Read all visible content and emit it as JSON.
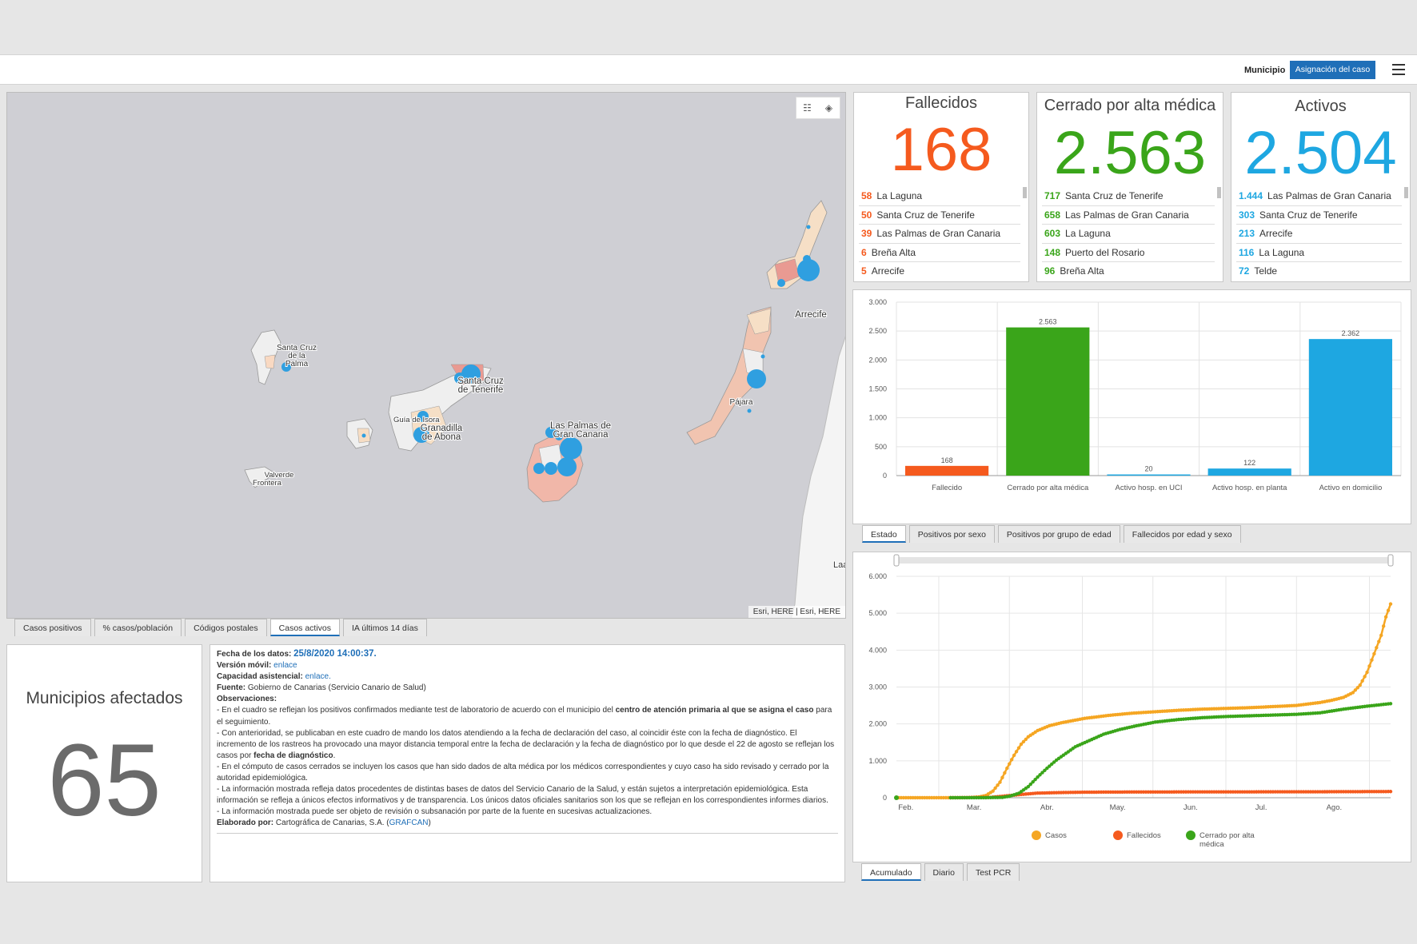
{
  "header": {
    "label": "Municipio",
    "button": "Asignación del caso"
  },
  "map": {
    "tools": {
      "list": "☷",
      "layers": "◈"
    },
    "attribution": "Esri, HERE | Esri, HERE",
    "labels": {
      "sc_palma": [
        "Santa Cruz",
        "de la",
        "Palma"
      ],
      "sc_tenerife": [
        "Santa Cruz",
        "de Tenerife"
      ],
      "guia": "Guía de Isora",
      "granadilla": [
        "Granadilla",
        "de Abona"
      ],
      "lpgc": [
        "Las Palmas de",
        "Gran Canaria"
      ],
      "arrecife": "Arrecife",
      "pajara": "Pájara",
      "valverde": [
        "Valverde",
        "Frontera"
      ],
      "laay": "Laay"
    },
    "tabs": [
      "Casos positivos",
      "% casos/población",
      "Códigos postales",
      "Casos activos",
      "IA últimos 14 días"
    ],
    "active_tab": 3
  },
  "colors": {
    "fallecidos": "#f55a1e",
    "cerrado": "#3aa51a",
    "activos": "#1ea7e1",
    "casos": "#f5a623",
    "blue": "#1f6fb8"
  },
  "kpis": [
    {
      "title": "Fallecidos",
      "value": "168",
      "color": "#f55a1e",
      "rows": [
        {
          "n": "58",
          "name": "La Laguna"
        },
        {
          "n": "50",
          "name": "Santa Cruz de Tenerife"
        },
        {
          "n": "39",
          "name": "Las Palmas de Gran Canaria"
        },
        {
          "n": "6",
          "name": "Breña Alta"
        },
        {
          "n": "5",
          "name": "Arrecife"
        }
      ]
    },
    {
      "title": "Cerrado por alta médica",
      "value": "2.563",
      "color": "#3aa51a",
      "rows": [
        {
          "n": "717",
          "name": "Santa Cruz de Tenerife"
        },
        {
          "n": "658",
          "name": "Las Palmas de Gran Canaria"
        },
        {
          "n": "603",
          "name": "La Laguna"
        },
        {
          "n": "148",
          "name": "Puerto del Rosario"
        },
        {
          "n": "96",
          "name": "Breña Alta"
        }
      ]
    },
    {
      "title": "Activos",
      "value": "2.504",
      "color": "#1ea7e1",
      "rows": [
        {
          "n": "1.444",
          "name": "Las Palmas de Gran Canaria"
        },
        {
          "n": "303",
          "name": "Santa Cruz de Tenerife"
        },
        {
          "n": "213",
          "name": "Arrecife"
        },
        {
          "n": "116",
          "name": "La Laguna"
        },
        {
          "n": "72",
          "name": "Telde"
        }
      ]
    }
  ],
  "municipios": {
    "title": "Municipios afectados",
    "value": "65"
  },
  "info": {
    "fecha_label": "Fecha de los datos:",
    "fecha": "25/8/2020 14:00:37.",
    "movil_label": "Versión móvil:",
    "movil_link": "enlace",
    "capacidad_label": "Capacidad asistencial:",
    "capacidad_link": "enlace.",
    "fuente_label": "Fuente:",
    "fuente": "Gobierno de Canarias (Servicio Canario de Salud)",
    "obs_label": "Observaciones:",
    "obs1a": "- En el cuadro se reflejan los positivos confirmados mediante test de laboratorio de acuerdo con el municipio del ",
    "obs1b": "centro de atención primaria al que se asigna el caso",
    "obs1c": " para el seguimiento.",
    "obs2a": "- Con anterioridad, se publicaban en este cuadro de mando los datos atendiendo a la fecha de declaración del caso, al coincidir éste con la fecha de diagnóstico. El incremento de los rastreos ha provocado una mayor distancia temporal entre la fecha de declaración y la fecha de diagnóstico por lo que desde el 22 de agosto se reflejan los casos por ",
    "obs2b": "fecha de diagnóstico",
    "obs3": "- En el cómputo de casos cerrados se incluyen los casos que han sido dados de alta médica por los médicos correspondientes y cuyo caso ha sido revisado y cerrado por la autoridad epidemiológica.",
    "obs4": "- La información mostrada refleja datos procedentes de distintas bases de datos del Servicio Canario de la Salud, y están sujetos a interpretación epidemiológica. Esta información se refleja a únicos efectos informativos y de transparencia. Los únicos datos oficiales sanitarios son los que se reflejan en los correspondientes informes diarios.",
    "obs5": "- La información mostrada puede ser objeto de revisión o subsanación por parte de la fuente en sucesivas actualizaciones.",
    "elab_label": "Elaborado por:",
    "elab": "Cartográfica de Canarias, S.A. (",
    "elab_link": "GRAFCAN",
    "elab_end": ")"
  },
  "chart_data": [
    {
      "type": "bar",
      "title": "",
      "categories": [
        "Fallecido",
        "Cerrado por alta médica",
        "Activo hosp. en UCI",
        "Activo hosp. en planta",
        "Activo en domicilio"
      ],
      "values": [
        168,
        2563,
        20,
        122,
        2362
      ],
      "labels": [
        "168",
        "2.563",
        "20",
        "122",
        "2.362"
      ],
      "colors": [
        "#f55a1e",
        "#3aa51a",
        "#1ea7e1",
        "#1ea7e1",
        "#1ea7e1"
      ],
      "ylim": [
        0,
        3000
      ],
      "yticks": [
        0,
        500,
        1000,
        1500,
        2000,
        2500,
        3000
      ],
      "yticklabels": [
        "0",
        "500",
        "1.000",
        "1.500",
        "2.000",
        "2.500",
        "3.000"
      ],
      "grid": true,
      "tabs": [
        "Estado",
        "Positivos por sexo",
        "Positivos por grupo de edad",
        "Fallecidos por edad y sexo"
      ],
      "active_tab": 0
    },
    {
      "type": "line",
      "title": "",
      "x_months": [
        "Feb.",
        "Mar.",
        "Abr.",
        "May.",
        "Jun.",
        "Jul.",
        "Ago."
      ],
      "ylim": [
        0,
        6000
      ],
      "yticks": [
        0,
        1000,
        2000,
        3000,
        4000,
        5000,
        6000
      ],
      "yticklabels": [
        "0",
        "1.000",
        "2.000",
        "3.000",
        "4.000",
        "5.000",
        "6.000"
      ],
      "x_day_range": [
        0,
        210
      ],
      "series": [
        {
          "name": "Casos",
          "color": "#f5a623",
          "points": [
            [
              0,
              0
            ],
            [
              23,
              0
            ],
            [
              30,
              2
            ],
            [
              35,
              20
            ],
            [
              38,
              60
            ],
            [
              41,
              180
            ],
            [
              44,
              420
            ],
            [
              47,
              800
            ],
            [
              50,
              1150
            ],
            [
              53,
              1450
            ],
            [
              56,
              1650
            ],
            [
              60,
              1820
            ],
            [
              65,
              1950
            ],
            [
              70,
              2030
            ],
            [
              80,
              2150
            ],
            [
              90,
              2230
            ],
            [
              100,
              2290
            ],
            [
              110,
              2330
            ],
            [
              120,
              2370
            ],
            [
              130,
              2400
            ],
            [
              140,
              2420
            ],
            [
              150,
              2440
            ],
            [
              160,
              2470
            ],
            [
              170,
              2500
            ],
            [
              180,
              2580
            ],
            [
              185,
              2640
            ],
            [
              190,
              2720
            ],
            [
              194,
              2850
            ],
            [
              197,
              3050
            ],
            [
              200,
              3400
            ],
            [
              203,
              3900
            ],
            [
              206,
              4400
            ],
            [
              208,
              4900
            ],
            [
              210,
              5250
            ]
          ]
        },
        {
          "name": "Fallecidos",
          "color": "#f55a1e",
          "points": [
            [
              23,
              0
            ],
            [
              40,
              10
            ],
            [
              45,
              40
            ],
            [
              50,
              70
            ],
            [
              55,
              100
            ],
            [
              60,
              125
            ],
            [
              70,
              140
            ],
            [
              80,
              150
            ],
            [
              100,
              155
            ],
            [
              130,
              158
            ],
            [
              160,
              160
            ],
            [
              190,
              163
            ],
            [
              210,
              168
            ]
          ]
        },
        {
          "name": "Cerrado por alta médica",
          "color": "#3aa51a",
          "points": [
            [
              23,
              0
            ],
            [
              38,
              2
            ],
            [
              45,
              10
            ],
            [
              48,
              40
            ],
            [
              52,
              120
            ],
            [
              56,
              300
            ],
            [
              60,
              560
            ],
            [
              64,
              800
            ],
            [
              68,
              1020
            ],
            [
              72,
              1200
            ],
            [
              76,
              1380
            ],
            [
              82,
              1550
            ],
            [
              88,
              1720
            ],
            [
              95,
              1850
            ],
            [
              102,
              1950
            ],
            [
              110,
              2050
            ],
            [
              120,
              2120
            ],
            [
              130,
              2170
            ],
            [
              140,
              2200
            ],
            [
              150,
              2220
            ],
            [
              160,
              2240
            ],
            [
              170,
              2260
            ],
            [
              180,
              2300
            ],
            [
              190,
              2400
            ],
            [
              200,
              2480
            ],
            [
              210,
              2550
            ]
          ]
        }
      ],
      "legend": [
        "Casos",
        "Fallecidos",
        "Cerrado por alta médica"
      ],
      "tabs": [
        "Acumulado",
        "Diario",
        "Test PCR"
      ],
      "active_tab": 0
    }
  ]
}
